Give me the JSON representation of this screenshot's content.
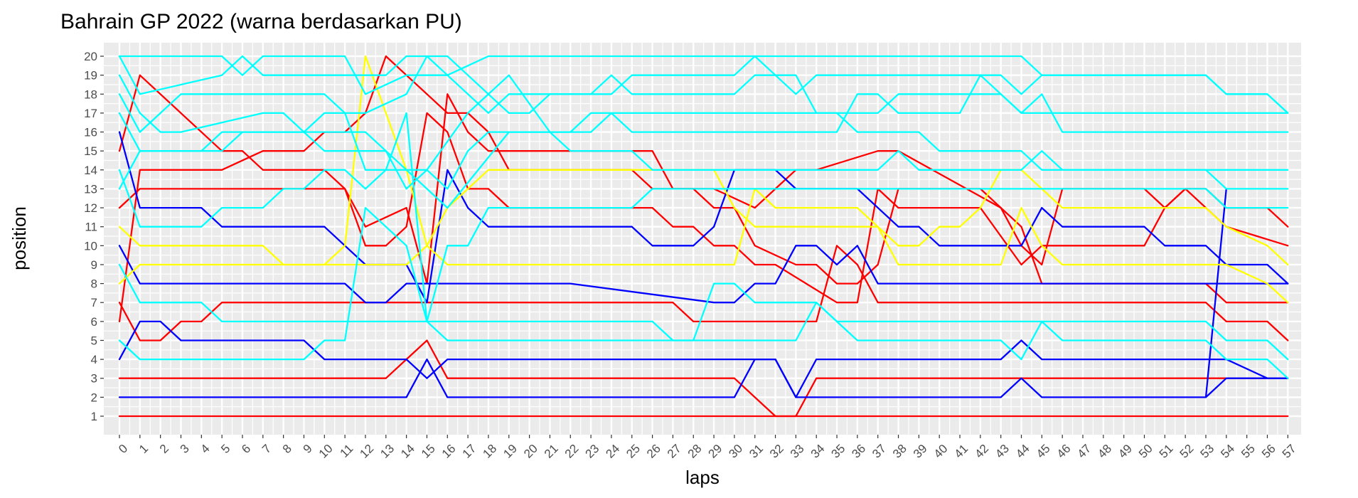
{
  "chart_data": {
    "type": "line",
    "title": "Bahrain GP 2022 (warna berdasarkan PU)",
    "xlabel": "laps",
    "ylabel": "position",
    "xlim": [
      0,
      57
    ],
    "ylim": [
      1,
      20
    ],
    "x_ticks": [
      "0",
      "1",
      "2",
      "3",
      "4",
      "5",
      "6",
      "7",
      "8",
      "9",
      "10",
      "11",
      "12",
      "13",
      "14",
      "15",
      "16",
      "17",
      "18",
      "19",
      "20",
      "21",
      "22",
      "23",
      "24",
      "25",
      "26",
      "27",
      "28",
      "29",
      "30",
      "31",
      "32",
      "33",
      "34",
      "35",
      "36",
      "37",
      "38",
      "39",
      "40",
      "41",
      "42",
      "43",
      "44",
      "45",
      "46",
      "47",
      "48",
      "49",
      "50",
      "51",
      "52",
      "53",
      "54",
      "55",
      "56",
      "57"
    ],
    "y_ticks": [
      "1",
      "2",
      "3",
      "4",
      "5",
      "6",
      "7",
      "8",
      "9",
      "10",
      "11",
      "12",
      "13",
      "14",
      "15",
      "16",
      "17",
      "18",
      "19",
      "20"
    ],
    "grid": true,
    "legend": "none",
    "colors": {
      "red": "#ff0000",
      "blue": "#0000ff",
      "yellow": "#ffff00",
      "cyan": "#00ffff",
      "panel_background": "#ebebeb",
      "grid": "#ffffff"
    },
    "series": [
      {
        "color": "red",
        "x": [
          0,
          57
        ],
        "y": [
          1,
          1
        ]
      },
      {
        "color": "red",
        "x": [
          0,
          13,
          14,
          15,
          16,
          30,
          31,
          32,
          33,
          34,
          57
        ],
        "y": [
          3,
          3,
          4,
          5,
          3,
          3,
          2,
          1,
          1,
          3,
          3
        ]
      },
      {
        "color": "red",
        "x": [
          0,
          1,
          2,
          3,
          4,
          5,
          15,
          16,
          27,
          28,
          34,
          35,
          36,
          37,
          53,
          54,
          56,
          57
        ],
        "y": [
          7,
          5,
          5,
          6,
          6,
          7,
          7,
          7,
          7,
          6,
          6,
          10,
          9,
          7,
          7,
          6,
          6,
          5
        ]
      },
      {
        "color": "red",
        "x": [
          0,
          1,
          5,
          7,
          9,
          10,
          11,
          12,
          13,
          14,
          15,
          16,
          17,
          18,
          19,
          25,
          26,
          28,
          29,
          30,
          31,
          33,
          34,
          35,
          36,
          37,
          38,
          42,
          43,
          44,
          45,
          53,
          54,
          57
        ],
        "y": [
          6,
          14,
          14,
          15,
          15,
          16,
          16,
          17,
          20,
          19,
          18,
          17,
          17,
          16,
          14,
          14,
          13,
          13,
          12,
          12,
          10,
          9,
          9,
          8,
          8,
          9,
          13,
          13,
          12,
          11,
          8,
          8,
          7,
          7
        ]
      },
      {
        "color": "red",
        "x": [
          0,
          1,
          11,
          12,
          14,
          15,
          16,
          17,
          18,
          26,
          27,
          28,
          29,
          31,
          32,
          33,
          34,
          37,
          38,
          43,
          44,
          45,
          46,
          50,
          51,
          52,
          53,
          54,
          56,
          57
        ],
        "y": [
          12,
          13,
          13,
          11,
          12,
          8,
          18,
          16,
          15,
          15,
          13,
          13,
          13,
          12,
          13,
          14,
          14,
          15,
          15,
          12,
          10,
          9,
          13,
          13,
          12,
          13,
          13,
          12,
          12,
          11
        ]
      },
      {
        "color": "red",
        "x": [
          0,
          1,
          5,
          6,
          7,
          10,
          11,
          12,
          13,
          14,
          15,
          16,
          17,
          18,
          19,
          26,
          27,
          28,
          29,
          30,
          31,
          32,
          35,
          36,
          37,
          38,
          39,
          42,
          44,
          45,
          50,
          51,
          52,
          54,
          57
        ],
        "y": [
          15,
          19,
          15,
          15,
          14,
          14,
          13,
          10,
          10,
          11,
          17,
          16,
          13,
          13,
          12,
          12,
          11,
          11,
          10,
          10,
          9,
          9,
          7,
          7,
          13,
          12,
          12,
          12,
          9,
          10,
          10,
          12,
          13,
          11,
          10
        ]
      },
      {
        "color": "blue",
        "x": [
          0,
          14,
          15,
          16,
          30,
          31,
          32,
          33,
          34,
          43,
          44,
          45,
          53,
          54,
          57
        ],
        "y": [
          2,
          2,
          4,
          2,
          2,
          4,
          4,
          2,
          2,
          2,
          3,
          2,
          2,
          3,
          3
        ]
      },
      {
        "color": "blue",
        "x": [
          0,
          1,
          2,
          3,
          9,
          10,
          13,
          14,
          15,
          16,
          29,
          30,
          31,
          32,
          33,
          34,
          43,
          44,
          45,
          53,
          54,
          56,
          57
        ],
        "y": [
          4,
          6,
          6,
          5,
          5,
          4,
          4,
          4,
          3,
          4,
          4,
          4,
          4,
          4,
          2,
          4,
          4,
          5,
          4,
          4,
          4,
          3,
          3
        ]
      },
      {
        "color": "blue",
        "x": [
          0,
          1,
          10,
          11,
          12,
          13,
          14,
          15,
          16,
          17,
          18,
          22,
          29,
          30,
          31,
          32,
          33,
          34,
          35,
          36,
          37,
          38,
          39,
          40,
          43,
          44,
          45,
          46,
          50,
          51,
          53,
          54,
          56,
          57
        ],
        "y": [
          10,
          8,
          8,
          8,
          7,
          7,
          8,
          8,
          8,
          8,
          8,
          8,
          7,
          7,
          8,
          8,
          10,
          10,
          9,
          10,
          8,
          8,
          8,
          8,
          8,
          8,
          8,
          8,
          8,
          8,
          8,
          8,
          8,
          8
        ]
      },
      {
        "color": "blue",
        "x": [
          0,
          1,
          4,
          5,
          10,
          12,
          14,
          15,
          16,
          17,
          18,
          25,
          26,
          28,
          29,
          30,
          31,
          32,
          33,
          36,
          38,
          39,
          40,
          43,
          44,
          45,
          46,
          50,
          51,
          53,
          54,
          56,
          57
        ],
        "y": [
          16,
          12,
          12,
          11,
          11,
          9,
          9,
          7,
          14,
          12,
          11,
          11,
          10,
          10,
          11,
          14,
          14,
          14,
          13,
          13,
          11,
          11,
          10,
          10,
          10,
          12,
          11,
          11,
          10,
          10,
          9,
          9,
          8
        ]
      },
      {
        "color": "blue",
        "x": [
          53,
          54
        ],
        "y": [
          2,
          13
        ]
      },
      {
        "color": "yellow",
        "x": [
          0,
          1,
          7,
          8,
          14,
          15,
          16,
          17,
          18,
          24,
          25,
          26,
          29,
          30,
          31,
          32,
          37,
          38,
          39,
          40,
          41,
          42,
          43,
          44,
          45,
          46,
          53,
          54,
          56,
          57
        ],
        "y": [
          11,
          10,
          10,
          9,
          9,
          10,
          12,
          13,
          14,
          14,
          14,
          14,
          14,
          12,
          11,
          11,
          11,
          10,
          10,
          11,
          11,
          12,
          14,
          14,
          13,
          12,
          12,
          11,
          10,
          9
        ]
      },
      {
        "color": "yellow",
        "x": [
          0,
          1,
          10,
          11,
          12,
          13,
          14,
          15,
          16,
          17,
          25,
          26,
          30,
          31,
          32,
          35,
          36,
          37,
          38,
          43,
          44,
          45,
          46,
          53,
          54,
          56,
          57
        ],
        "y": [
          8,
          9,
          9,
          10,
          20,
          17,
          14,
          10,
          9,
          9,
          9,
          9,
          9,
          13,
          12,
          12,
          12,
          11,
          9,
          9,
          12,
          10,
          9,
          9,
          9,
          8,
          7
        ]
      },
      {
        "color": "cyan",
        "x": [
          0,
          1,
          9,
          10,
          11,
          12,
          14,
          15,
          16,
          22,
          24,
          25,
          29,
          30,
          33,
          34,
          35,
          36,
          43,
          44,
          45,
          46,
          53,
          54,
          56,
          57
        ],
        "y": [
          5,
          4,
          4,
          5,
          5,
          12,
          10,
          6,
          5,
          5,
          5,
          5,
          5,
          5,
          5,
          7,
          6,
          5,
          5,
          4,
          6,
          5,
          5,
          4,
          4,
          3
        ]
      },
      {
        "color": "cyan",
        "x": [
          0,
          1,
          4,
          5,
          6,
          26,
          27,
          28,
          29,
          30,
          31,
          34,
          35,
          36,
          43,
          44,
          45,
          46,
          53,
          54,
          56,
          57
        ],
        "y": [
          9,
          7,
          7,
          6,
          6,
          6,
          5,
          5,
          8,
          8,
          7,
          7,
          6,
          6,
          6,
          6,
          6,
          6,
          6,
          5,
          5,
          4
        ]
      },
      {
        "color": "cyan",
        "x": [
          0,
          1,
          4,
          5,
          7,
          8,
          9,
          10,
          11,
          12,
          13,
          14,
          15,
          16,
          17,
          18,
          25,
          26,
          53,
          54,
          56,
          57
        ],
        "y": [
          14,
          11,
          11,
          12,
          12,
          13,
          13,
          14,
          14,
          13,
          14,
          17,
          6,
          10,
          10,
          12,
          12,
          13,
          13,
          12,
          12,
          12
        ]
      },
      {
        "color": "cyan",
        "x": [
          0,
          1,
          4,
          5,
          11,
          12,
          13,
          14,
          15,
          16,
          17,
          18,
          19,
          21,
          22,
          25,
          26,
          36,
          37,
          38,
          39,
          40,
          43,
          44,
          45,
          46,
          53,
          54,
          56,
          57
        ],
        "y": [
          13,
          15,
          15,
          16,
          16,
          16,
          15,
          13,
          14,
          13,
          15,
          16,
          16,
          16,
          15,
          15,
          14,
          14,
          14,
          15,
          14,
          14,
          14,
          14,
          15,
          14,
          14,
          13,
          13,
          13
        ]
      },
      {
        "color": "cyan",
        "x": [
          0,
          1,
          5,
          6,
          7,
          9,
          10,
          12,
          13,
          15,
          16,
          19,
          20,
          23,
          24,
          35,
          36,
          37,
          38,
          39,
          40,
          43,
          44,
          45,
          53,
          54,
          56,
          57
        ],
        "y": [
          17,
          15,
          15,
          16,
          16,
          16,
          15,
          15,
          15,
          13,
          12,
          16,
          16,
          16,
          17,
          17,
          16,
          16,
          16,
          16,
          15,
          15,
          15,
          14,
          14,
          14,
          14,
          14
        ]
      },
      {
        "color": "cyan",
        "x": [
          0,
          1,
          2,
          3,
          7,
          8,
          9,
          10,
          11,
          12,
          14,
          15,
          17,
          19,
          21,
          22,
          23,
          24,
          25,
          26,
          27,
          28,
          29,
          30,
          35,
          36,
          37,
          38,
          41,
          42,
          43,
          44,
          45,
          46,
          53,
          54,
          56,
          57
        ],
        "y": [
          19,
          17,
          16,
          16,
          17,
          17,
          16,
          17,
          17,
          14,
          14,
          14,
          17,
          19,
          16,
          16,
          17,
          17,
          16,
          16,
          16,
          16,
          16,
          16,
          16,
          18,
          18,
          17,
          17,
          19,
          18,
          17,
          18,
          16,
          16,
          16,
          16,
          16
        ]
      },
      {
        "color": "cyan",
        "x": [
          0,
          1,
          2,
          3,
          4,
          10,
          11,
          12,
          14,
          15,
          16,
          17,
          18,
          19,
          20,
          21,
          22,
          23,
          24,
          25,
          26,
          27,
          28,
          29,
          30,
          31,
          32,
          33,
          34,
          36,
          37,
          38,
          42,
          43,
          44,
          45,
          46,
          53,
          54,
          56,
          57
        ],
        "y": [
          18,
          16,
          17,
          18,
          18,
          18,
          17,
          17,
          18,
          20,
          20,
          19,
          18,
          17,
          17,
          18,
          18,
          18,
          19,
          18,
          18,
          18,
          18,
          18,
          18,
          19,
          19,
          19,
          17,
          17,
          17,
          18,
          18,
          18,
          17,
          17,
          17,
          17,
          17,
          17,
          17
        ]
      },
      {
        "color": "cyan",
        "x": [
          0,
          1,
          5,
          6,
          7,
          11,
          12,
          13,
          14,
          15,
          16,
          18,
          19,
          20,
          23,
          24,
          25,
          30,
          31,
          32,
          33,
          34,
          36,
          37,
          38,
          42,
          43,
          44,
          45,
          53,
          54,
          56,
          57
        ],
        "y": [
          20,
          18,
          19,
          20,
          19,
          19,
          19,
          19,
          20,
          20,
          19,
          17,
          18,
          18,
          18,
          18,
          19,
          19,
          20,
          19,
          18,
          19,
          19,
          19,
          19,
          19,
          19,
          18,
          19,
          19,
          18,
          18,
          17
        ]
      },
      {
        "color": "cyan",
        "x": [
          0,
          1,
          5,
          6,
          7,
          11,
          12,
          14,
          15,
          16,
          18,
          19,
          24,
          25,
          31,
          32,
          37,
          38,
          44,
          45,
          53,
          54,
          56,
          57
        ],
        "y": [
          20,
          20,
          20,
          19,
          20,
          20,
          18,
          19,
          19,
          19,
          20,
          20,
          20,
          20,
          20,
          20,
          20,
          20,
          20,
          19,
          19,
          18,
          18,
          17
        ]
      }
    ]
  }
}
